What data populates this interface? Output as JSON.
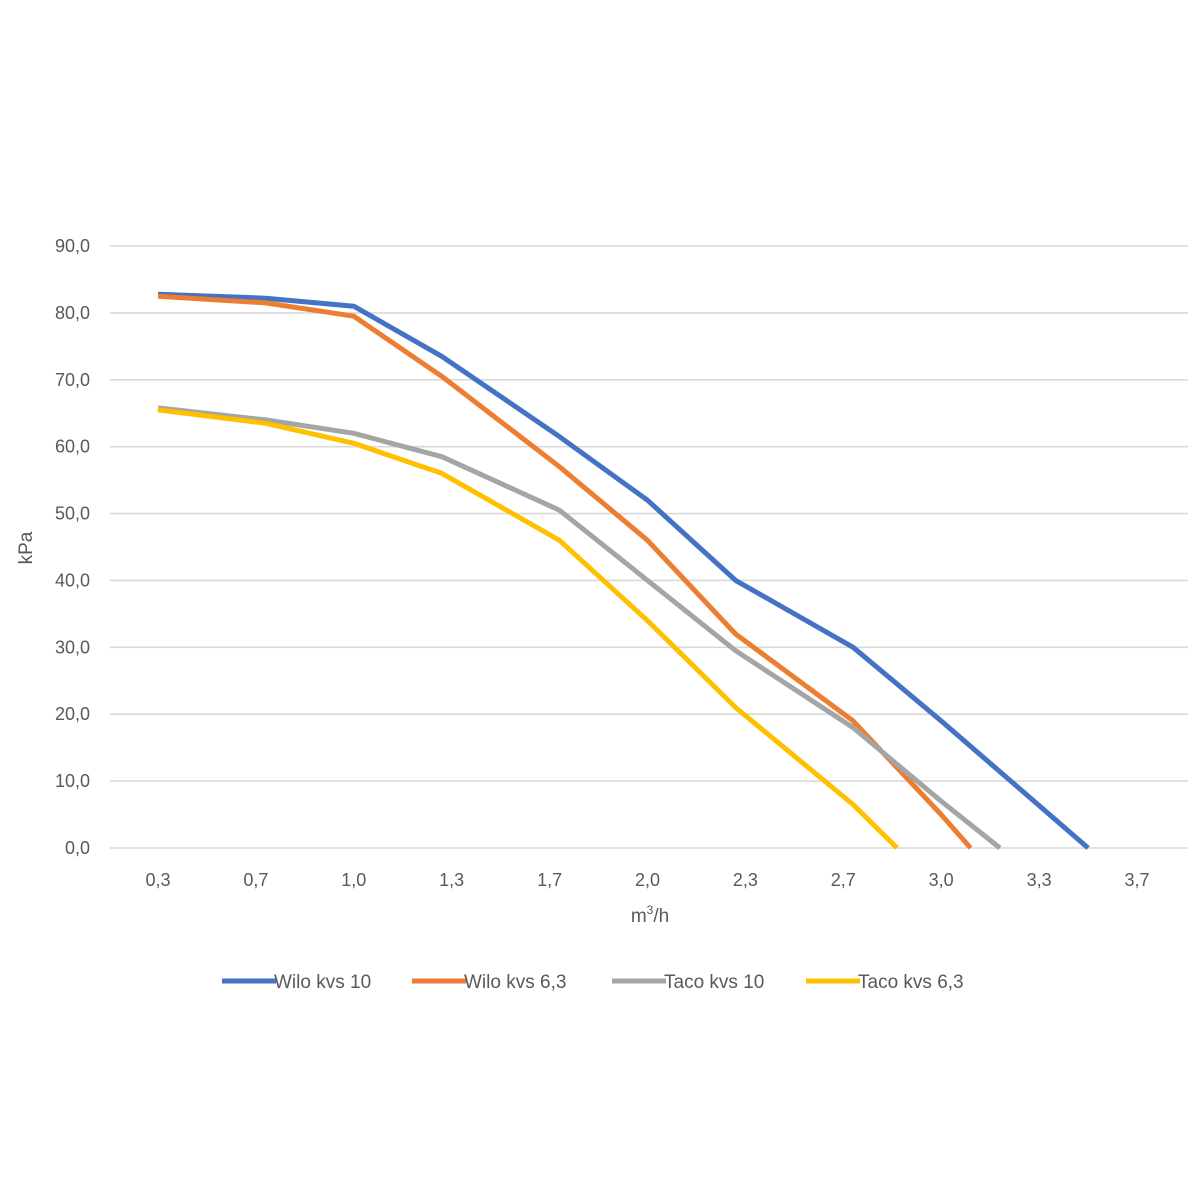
{
  "chart_data": {
    "type": "line",
    "xlabel": {
      "main": "m",
      "sup": "3",
      "rest": "/h"
    },
    "ylabel": "kPa",
    "x_tick_labels": [
      "0,3",
      "0,7",
      "1,0",
      "1,3",
      "1,7",
      "2,0",
      "2,3",
      "2,7",
      "3,0",
      "3,3",
      "3,7"
    ],
    "y_tick_labels": [
      "0,0",
      "10,0",
      "20,0",
      "30,0",
      "40,0",
      "50,0",
      "60,0",
      "70,0",
      "80,0",
      "90,0"
    ],
    "ylim": [
      0,
      90
    ],
    "grid": true,
    "legend_position": "bottom",
    "series": [
      {
        "name": "Wilo kvs 10",
        "color": "#4472C4",
        "x": [
          0.3,
          0.7,
          1.0,
          1.3,
          1.7,
          2.0,
          2.3,
          2.7,
          3.0,
          3.5
        ],
        "y": [
          82.8,
          82.2,
          81.0,
          73.5,
          61.5,
          52.0,
          40.0,
          30.0,
          19.0,
          0.0
        ]
      },
      {
        "name": "Wilo kvs 6,3",
        "color": "#ED7D31",
        "x": [
          0.3,
          0.7,
          1.0,
          1.3,
          1.7,
          2.0,
          2.3,
          2.7,
          3.0,
          3.1
        ],
        "y": [
          82.5,
          81.5,
          79.5,
          70.5,
          57.0,
          46.0,
          32.0,
          19.0,
          5.0,
          0.0
        ]
      },
      {
        "name": "Taco kvs 10",
        "color": "#A5A5A5",
        "x": [
          0.3,
          0.7,
          1.0,
          1.3,
          1.7,
          2.0,
          2.3,
          2.7,
          3.0,
          3.2
        ],
        "y": [
          65.8,
          64.0,
          62.0,
          58.5,
          50.5,
          40.0,
          29.5,
          18.0,
          7.0,
          0.0
        ]
      },
      {
        "name": "Taco kvs 6,3",
        "color": "#FFC000",
        "x": [
          0.3,
          0.7,
          1.0,
          1.3,
          1.7,
          2.0,
          2.3,
          2.7,
          2.85
        ],
        "y": [
          65.5,
          63.5,
          60.5,
          56.0,
          46.0,
          34.0,
          21.0,
          6.5,
          0.0
        ]
      }
    ]
  }
}
